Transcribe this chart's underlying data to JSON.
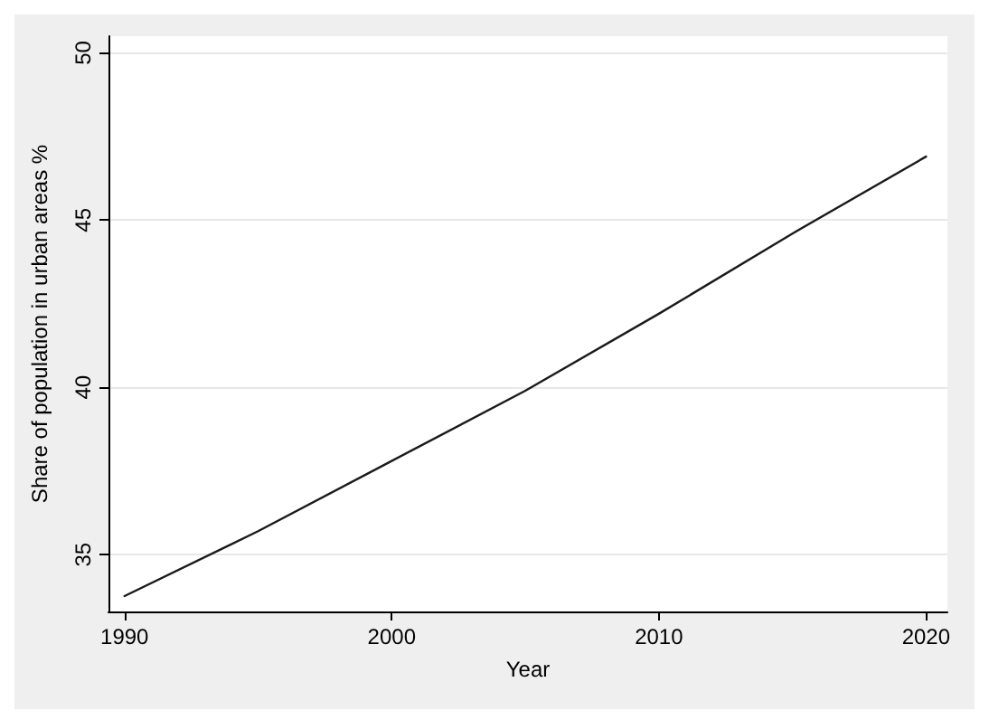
{
  "chart_data": {
    "type": "line",
    "xlabel": "Year",
    "ylabel": "Share of population in urban areas %",
    "x": [
      1990,
      1995,
      2000,
      2005,
      2010,
      2015,
      2020
    ],
    "series": [
      {
        "color": "#1a1a1a",
        "values": [
          33.76,
          35.7,
          37.8,
          39.9,
          42.2,
          44.6,
          46.9
        ]
      }
    ],
    "xlim": [
      1989.4,
      2020.8
    ],
    "xticks": [
      1990,
      2000,
      2010,
      2020
    ],
    "ylim": [
      33.3,
      50.5
    ],
    "yticks": [
      35,
      40,
      45,
      50
    ],
    "grid": "y",
    "marker": "none",
    "line_style": "solid"
  }
}
